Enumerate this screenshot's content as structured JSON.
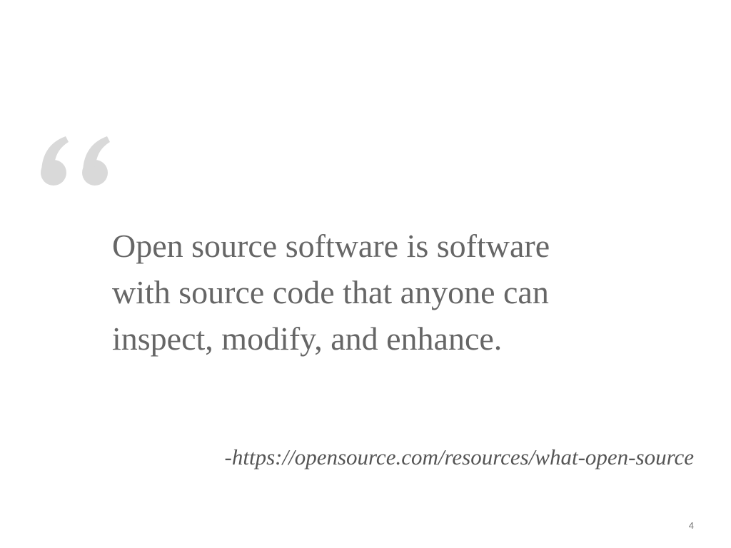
{
  "slide": {
    "quote_lines": [
      "Open source software is software",
      "with source code that anyone can",
      "inspect, modify, and enhance."
    ],
    "attribution": "-https://opensource.com/resources/what-open-source",
    "page_number": "4",
    "quote_mark_icon": "open-quote-icon",
    "colors": {
      "quote_mark": "#d9d9d9",
      "quote_text": "#666666",
      "attribution_text": "#555555",
      "page_number_text": "#777777"
    }
  }
}
